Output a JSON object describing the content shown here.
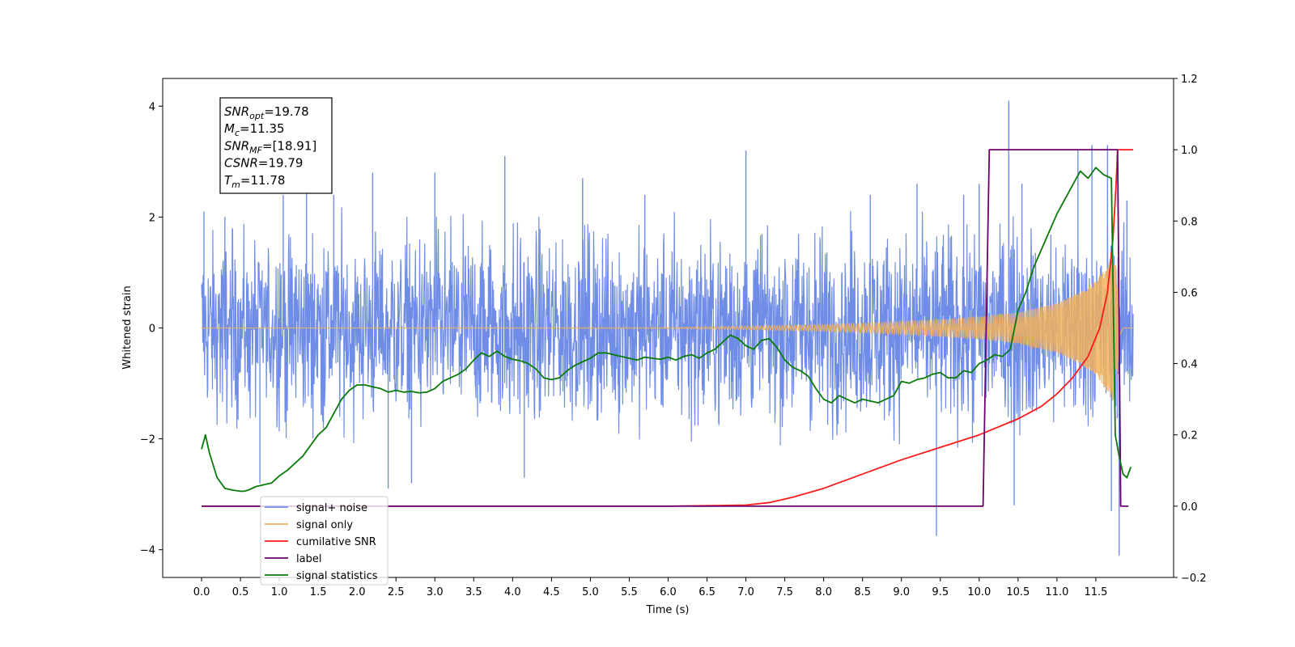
{
  "chart_data": {
    "type": "line",
    "title": "",
    "xlabel": "Time (s)",
    "ylabel": "Whitened strain",
    "ylabel_right": "",
    "xlim": [
      -0.5,
      12.5
    ],
    "ylim": [
      -4.5,
      4.5
    ],
    "ylim_right": [
      -0.2,
      1.2
    ],
    "x_ticks": [
      0.0,
      0.5,
      1.0,
      1.5,
      2.0,
      2.5,
      3.0,
      3.5,
      4.0,
      4.5,
      5.0,
      5.5,
      6.0,
      6.5,
      7.0,
      7.5,
      8.0,
      8.5,
      9.0,
      9.5,
      10.0,
      10.5,
      11.0,
      11.5
    ],
    "x_tick_labels": [
      "0.0",
      "0.5",
      "1.0",
      "1.5",
      "2.0",
      "2.5",
      "3.0",
      "3.5",
      "4.0",
      "4.5",
      "5.0",
      "5.5",
      "6.0",
      "6.5",
      "7.0",
      "7.5",
      "8.0",
      "8.5",
      "9.0",
      "9.5",
      "10.0",
      "10.5",
      "11.0",
      "11.5"
    ],
    "y_ticks": [
      -4,
      -2,
      0,
      2,
      4
    ],
    "y_tick_labels": [
      "−4",
      "−2",
      "0",
      "2",
      "4"
    ],
    "y_ticks_right": [
      -0.2,
      0.0,
      0.2,
      0.4,
      0.6,
      0.8,
      1.0,
      1.2
    ],
    "y_tick_labels_right": [
      "−0.2",
      "0.0",
      "0.2",
      "0.4",
      "0.6",
      "0.8",
      "1.0",
      "1.2"
    ],
    "grid": false,
    "legend_position": "lower-left",
    "annotation": {
      "lines": [
        {
          "main": "SNR",
          "sub": "opt",
          "value": "=19.78"
        },
        {
          "main": "M",
          "sub": "c",
          "value": "=11.35"
        },
        {
          "main": "SNR",
          "sub": "MF",
          "value": "=[18.91]"
        },
        {
          "main": "CSNR",
          "sub": "",
          "value": "=19.79"
        },
        {
          "main": "T",
          "sub": "m",
          "value": "=11.78"
        }
      ]
    },
    "series": [
      {
        "name": "signal+ noise",
        "axis": "left",
        "color": "#6f8de6",
        "style": "noise",
        "x_range": [
          0.0,
          11.98
        ],
        "envelope_upper": [
          [
            0.0,
            2.1
          ],
          [
            0.5,
            1.9
          ],
          [
            1.0,
            2.0
          ],
          [
            1.5,
            2.3
          ],
          [
            2.0,
            2.1
          ],
          [
            2.5,
            2.0
          ],
          [
            3.0,
            2.2
          ],
          [
            3.5,
            2.0
          ],
          [
            4.0,
            2.2
          ],
          [
            4.5,
            2.0
          ],
          [
            5.0,
            2.1
          ],
          [
            5.5,
            2.0
          ],
          [
            6.0,
            2.1
          ],
          [
            6.5,
            2.2
          ],
          [
            7.0,
            2.1
          ],
          [
            7.5,
            2.1
          ],
          [
            8.0,
            2.2
          ],
          [
            8.5,
            2.1
          ],
          [
            9.0,
            2.2
          ],
          [
            9.5,
            2.1
          ],
          [
            10.0,
            2.2
          ],
          [
            10.5,
            2.1
          ],
          [
            11.0,
            2.1
          ],
          [
            11.5,
            2.2
          ],
          [
            11.98,
            1.9
          ]
        ],
        "envelope_lower": [
          [
            0.0,
            -1.9
          ],
          [
            0.5,
            -2.1
          ],
          [
            1.0,
            -2.2
          ],
          [
            1.5,
            -2.0
          ],
          [
            2.0,
            -2.1
          ],
          [
            2.5,
            -2.3
          ],
          [
            3.0,
            -2.1
          ],
          [
            3.5,
            -2.2
          ],
          [
            4.0,
            -2.3
          ],
          [
            4.5,
            -2.1
          ],
          [
            5.0,
            -2.2
          ],
          [
            5.5,
            -2.2
          ],
          [
            6.0,
            -2.1
          ],
          [
            6.5,
            -2.2
          ],
          [
            7.0,
            -2.1
          ],
          [
            7.5,
            -2.2
          ],
          [
            8.0,
            -2.1
          ],
          [
            8.5,
            -2.2
          ],
          [
            9.0,
            -2.2
          ],
          [
            9.5,
            -2.3
          ],
          [
            10.0,
            -2.3
          ],
          [
            10.5,
            -2.3
          ],
          [
            11.0,
            -2.3
          ],
          [
            11.5,
            -2.3
          ],
          [
            11.98,
            -2.0
          ]
        ],
        "peaks": [
          [
            0.03,
            2.1
          ],
          [
            0.3,
            2.0
          ],
          [
            1.05,
            2.4
          ],
          [
            1.35,
            2.5
          ],
          [
            1.7,
            2.4
          ],
          [
            2.2,
            2.8
          ],
          [
            3.0,
            2.8
          ],
          [
            3.9,
            3.1
          ],
          [
            4.9,
            2.7
          ],
          [
            5.7,
            2.4
          ],
          [
            7.0,
            3.2
          ],
          [
            8.6,
            2.4
          ],
          [
            9.2,
            2.6
          ],
          [
            9.8,
            2.4
          ],
          [
            10.0,
            2.6
          ],
          [
            10.38,
            4.1
          ],
          [
            10.55,
            2.6
          ],
          [
            11.27,
            3.2
          ],
          [
            11.45,
            3.3
          ],
          [
            11.65,
            3.3
          ],
          [
            11.9,
            2.3
          ],
          [
            0.75,
            -2.8
          ],
          [
            2.4,
            -2.9
          ],
          [
            2.7,
            -2.8
          ],
          [
            4.15,
            -2.7
          ],
          [
            9.45,
            -3.75
          ],
          [
            10.45,
            -3.2
          ],
          [
            11.8,
            -4.1
          ],
          [
            11.7,
            -3.3
          ]
        ]
      },
      {
        "name": "signal only",
        "axis": "left",
        "color": "#f2b25c",
        "style": "chirp",
        "amplitude": [
          [
            0.0,
            0.0
          ],
          [
            6.0,
            0.01
          ],
          [
            7.0,
            0.03
          ],
          [
            8.0,
            0.06
          ],
          [
            9.0,
            0.11
          ],
          [
            10.0,
            0.2
          ],
          [
            10.5,
            0.28
          ],
          [
            11.0,
            0.45
          ],
          [
            11.3,
            0.65
          ],
          [
            11.5,
            0.85
          ],
          [
            11.65,
            1.15
          ],
          [
            11.72,
            1.35
          ],
          [
            11.76,
            1.1
          ],
          [
            11.8,
            0.4
          ],
          [
            11.85,
            0.0
          ],
          [
            11.98,
            0.0
          ]
        ]
      },
      {
        "name": "cumilative SNR",
        "axis": "right",
        "color": "#ff1a1a",
        "x": [
          0.0,
          6.0,
          7.0,
          7.3,
          7.6,
          8.0,
          8.5,
          9.0,
          9.5,
          10.0,
          10.5,
          10.8,
          11.0,
          11.2,
          11.4,
          11.55,
          11.65,
          11.72,
          11.76,
          11.78,
          11.8,
          11.98
        ],
        "y": [
          0.0,
          0.0,
          0.003,
          0.01,
          0.025,
          0.05,
          0.09,
          0.13,
          0.165,
          0.2,
          0.245,
          0.28,
          0.315,
          0.36,
          0.42,
          0.5,
          0.6,
          0.75,
          0.9,
          1.0,
          1.0,
          1.0
        ]
      },
      {
        "name": "label",
        "axis": "right",
        "color": "#6d006d",
        "x": [
          0.0,
          10.05,
          10.13,
          11.78,
          11.82,
          11.92
        ],
        "y": [
          0.0,
          0.0,
          1.0,
          1.0,
          0.0,
          0.0
        ]
      },
      {
        "name": "signal statistics",
        "axis": "right",
        "color": "#0a7a0a",
        "x": [
          0.0,
          0.05,
          0.1,
          0.2,
          0.3,
          0.4,
          0.5,
          0.55,
          0.6,
          0.7,
          0.8,
          0.9,
          1.0,
          1.1,
          1.2,
          1.3,
          1.4,
          1.5,
          1.6,
          1.7,
          1.8,
          1.9,
          2.0,
          2.1,
          2.2,
          2.3,
          2.4,
          2.5,
          2.6,
          2.7,
          2.8,
          2.9,
          3.0,
          3.1,
          3.2,
          3.3,
          3.4,
          3.5,
          3.6,
          3.7,
          3.8,
          3.9,
          4.0,
          4.1,
          4.2,
          4.3,
          4.4,
          4.5,
          4.6,
          4.7,
          4.8,
          4.9,
          5.0,
          5.1,
          5.2,
          5.3,
          5.4,
          5.5,
          5.6,
          5.7,
          5.8,
          5.9,
          6.0,
          6.1,
          6.2,
          6.3,
          6.4,
          6.5,
          6.6,
          6.7,
          6.8,
          6.9,
          7.0,
          7.1,
          7.2,
          7.3,
          7.4,
          7.5,
          7.6,
          7.7,
          7.8,
          7.9,
          8.0,
          8.1,
          8.2,
          8.3,
          8.4,
          8.5,
          8.6,
          8.7,
          8.8,
          8.9,
          9.0,
          9.1,
          9.2,
          9.3,
          9.4,
          9.5,
          9.6,
          9.7,
          9.8,
          9.9,
          10.0,
          10.1,
          10.2,
          10.3,
          10.4,
          10.5,
          10.6,
          10.7,
          10.8,
          10.9,
          11.0,
          11.1,
          11.2,
          11.3,
          11.4,
          11.5,
          11.6,
          11.7,
          11.75,
          11.8,
          11.85,
          11.9,
          11.95
        ],
        "y": [
          0.16,
          0.2,
          0.15,
          0.08,
          0.05,
          0.045,
          0.042,
          0.042,
          0.045,
          0.055,
          0.06,
          0.065,
          0.085,
          0.1,
          0.12,
          0.14,
          0.17,
          0.2,
          0.22,
          0.26,
          0.3,
          0.325,
          0.34,
          0.34,
          0.335,
          0.33,
          0.32,
          0.325,
          0.32,
          0.322,
          0.318,
          0.32,
          0.33,
          0.35,
          0.36,
          0.37,
          0.385,
          0.41,
          0.43,
          0.42,
          0.435,
          0.42,
          0.412,
          0.408,
          0.4,
          0.385,
          0.36,
          0.355,
          0.36,
          0.38,
          0.395,
          0.405,
          0.415,
          0.43,
          0.43,
          0.425,
          0.42,
          0.415,
          0.41,
          0.418,
          0.415,
          0.412,
          0.418,
          0.41,
          0.42,
          0.425,
          0.415,
          0.43,
          0.44,
          0.46,
          0.48,
          0.47,
          0.45,
          0.44,
          0.465,
          0.47,
          0.445,
          0.41,
          0.39,
          0.38,
          0.365,
          0.33,
          0.3,
          0.29,
          0.31,
          0.3,
          0.29,
          0.3,
          0.295,
          0.29,
          0.3,
          0.31,
          0.35,
          0.345,
          0.355,
          0.36,
          0.37,
          0.375,
          0.36,
          0.36,
          0.38,
          0.375,
          0.4,
          0.41,
          0.425,
          0.42,
          0.44,
          0.55,
          0.6,
          0.67,
          0.72,
          0.77,
          0.82,
          0.86,
          0.9,
          0.94,
          0.92,
          0.95,
          0.93,
          0.92,
          0.2,
          0.14,
          0.09,
          0.08,
          0.11
        ]
      }
    ]
  }
}
